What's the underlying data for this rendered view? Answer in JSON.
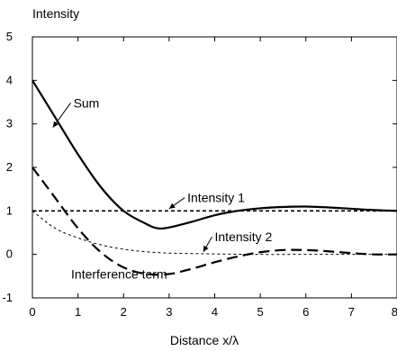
{
  "chart_data": {
    "type": "line",
    "title": "",
    "ylabel": "Intensity",
    "xlabel": "Distance x/λ",
    "xlim": [
      0,
      8
    ],
    "ylim": [
      -1,
      5
    ],
    "x_ticks": [
      0,
      1,
      2,
      3,
      4,
      5,
      6,
      7,
      8
    ],
    "y_ticks": [
      -1,
      0,
      1,
      2,
      3,
      4,
      5
    ],
    "x_tick_labels": [
      "0",
      "1",
      "2",
      "3",
      "4",
      "5",
      "6",
      "7",
      "8"
    ],
    "y_tick_labels": [
      "-1",
      "0",
      "1",
      "2",
      "3",
      "4",
      "5"
    ],
    "grid": false,
    "series": [
      {
        "name": "Sum",
        "style": "solid",
        "x": [
          0,
          0.5,
          1,
          1.5,
          2,
          2.5,
          2.75,
          3,
          3.5,
          4,
          4.5,
          5,
          5.5,
          6,
          6.5,
          7,
          7.5,
          8
        ],
        "y": [
          4,
          3.15,
          2.3,
          1.55,
          1.0,
          0.7,
          0.6,
          0.62,
          0.75,
          0.9,
          1.0,
          1.06,
          1.09,
          1.1,
          1.08,
          1.05,
          1.02,
          1.0
        ]
      },
      {
        "name": "Intensity 1",
        "style": "short-dash",
        "x": [
          0,
          8
        ],
        "y": [
          1,
          1
        ]
      },
      {
        "name": "Intensity 2",
        "style": "fine-dash",
        "x": [
          0,
          0.5,
          1,
          1.5,
          2,
          2.5,
          3,
          3.5,
          4,
          5,
          6,
          7,
          8
        ],
        "y": [
          1.0,
          0.6,
          0.38,
          0.22,
          0.12,
          0.06,
          0.03,
          0.02,
          0.01,
          0.0,
          0.0,
          0.0,
          0.0
        ]
      },
      {
        "name": "Interference term",
        "style": "long-dash",
        "x": [
          0,
          0.5,
          1,
          1.5,
          2,
          2.5,
          3,
          3.5,
          4,
          4.5,
          5,
          5.5,
          6,
          6.5,
          7,
          7.5,
          8
        ],
        "y": [
          2,
          1.3,
          0.6,
          0.05,
          -0.3,
          -0.45,
          -0.45,
          -0.33,
          -0.18,
          -0.05,
          0.05,
          0.1,
          0.1,
          0.07,
          0.03,
          0.0,
          0.0
        ]
      }
    ],
    "annotations": [
      {
        "text": "Sum",
        "x": 0.9,
        "y": 3.38,
        "arrow_to": [
          0.45,
          2.92
        ]
      },
      {
        "text": "Intensity 1",
        "x": 3.4,
        "y": 1.2,
        "arrow_to": [
          3.0,
          1.05
        ]
      },
      {
        "text": "Intensity 2",
        "x": 4.0,
        "y": 0.3,
        "arrow_to": [
          3.75,
          0.06
        ]
      },
      {
        "text": "Interference term",
        "x": 0.85,
        "y": -0.55,
        "arrow_to": null
      }
    ]
  }
}
